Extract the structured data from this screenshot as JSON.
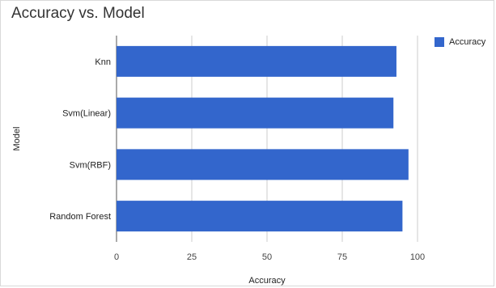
{
  "chart_data": {
    "type": "bar",
    "orientation": "horizontal",
    "title": "Accuracy vs. Model",
    "xlabel": "Accuracy",
    "ylabel": "Model",
    "categories": [
      "Knn",
      "Svm(Linear)",
      "Svm(RBF)",
      "Random Forest"
    ],
    "series": [
      {
        "name": "Accuracy",
        "values": [
          93,
          92,
          97,
          95
        ],
        "color": "#3366cc"
      }
    ],
    "xlim": [
      0,
      100
    ],
    "xticks": [
      0,
      25,
      50,
      75,
      100
    ],
    "grid": true,
    "legend_position": "right"
  }
}
